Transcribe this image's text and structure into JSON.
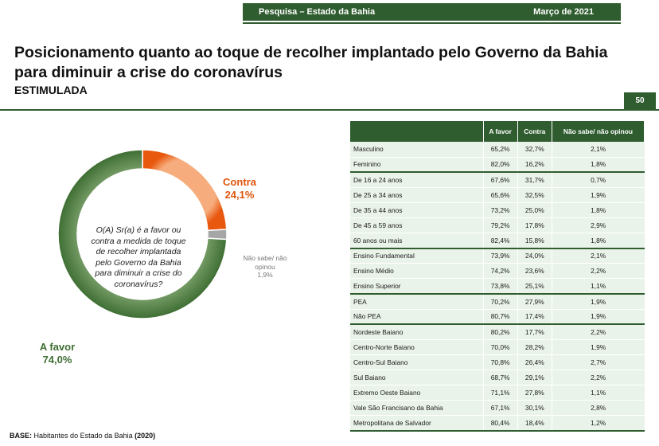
{
  "header": {
    "survey": "Pesquisa – Estado da Bahia",
    "date": "Março de 2021"
  },
  "title": "Posicionamento quanto ao toque de recolher implantado pelo Governo da Bahia para diminuir a crise do coronavírus",
  "subtitle": "ESTIMULADA",
  "page_number": "50",
  "question": "O(A) Sr(a) é a favor ou contra a medida de toque de recolher implantada pelo Governo da Bahia para diminuir a crise do coronavírus?",
  "labels": {
    "contra_name": "Contra",
    "contra_value": "24,1%",
    "ns_name": "Não sabe/ não opinou",
    "ns_value": "1,9%",
    "favor_name": "A favor",
    "favor_value": "74,0%"
  },
  "base": {
    "label": "BASE:",
    "text": "Habitantes do Estado da Bahia",
    "year": "(2020)"
  },
  "colors": {
    "favor": "#3e6e33",
    "contra": "#e8580f",
    "ns": "#a6a6a6",
    "header_green": "#2f5d2f"
  },
  "chart_data": [
    {
      "type": "pie",
      "donut": true,
      "categories": [
        "A favor",
        "Contra",
        "Não sabe/ não opinou"
      ],
      "values": [
        74.0,
        24.1,
        1.9
      ]
    },
    {
      "type": "table",
      "columns": [
        "",
        "A favor",
        "Contra",
        "Não sabe/ não opinou"
      ],
      "rows": [
        {
          "label": "Masculino",
          "values": [
            "65,2%",
            "32,7%",
            "2,1%"
          ],
          "group_start": false
        },
        {
          "label": "Feminino",
          "values": [
            "82,0%",
            "16,2%",
            "1,8%"
          ],
          "group_start": false
        },
        {
          "label": "De 16 a 24 anos",
          "values": [
            "67,6%",
            "31,7%",
            "0,7%"
          ],
          "group_start": true
        },
        {
          "label": "De 25 a 34 anos",
          "values": [
            "65,6%",
            "32,5%",
            "1,9%"
          ],
          "group_start": false
        },
        {
          "label": "De 35 a 44 anos",
          "values": [
            "73,2%",
            "25,0%",
            "1,8%"
          ],
          "group_start": false
        },
        {
          "label": "De 45 a 59 anos",
          "values": [
            "79,2%",
            "17,8%",
            "2,9%"
          ],
          "group_start": false
        },
        {
          "label": "60 anos ou mais",
          "values": [
            "82,4%",
            "15,8%",
            "1,8%"
          ],
          "group_start": false
        },
        {
          "label": "Ensino Fundamental",
          "values": [
            "73,9%",
            "24,0%",
            "2,1%"
          ],
          "group_start": true
        },
        {
          "label": "Ensino Médio",
          "values": [
            "74,2%",
            "23,6%",
            "2,2%"
          ],
          "group_start": false
        },
        {
          "label": "Ensino Superior",
          "values": [
            "73,8%",
            "25,1%",
            "1,1%"
          ],
          "group_start": false
        },
        {
          "label": "PEA",
          "values": [
            "70,2%",
            "27,9%",
            "1,9%"
          ],
          "group_start": true
        },
        {
          "label": "Não PEA",
          "values": [
            "80,7%",
            "17,4%",
            "1,9%"
          ],
          "group_start": false
        },
        {
          "label": "Nordeste Baiano",
          "values": [
            "80,2%",
            "17,7%",
            "2,2%"
          ],
          "group_start": true
        },
        {
          "label": "Centro-Norte Baiano",
          "values": [
            "70,0%",
            "28,2%",
            "1,9%"
          ],
          "group_start": false
        },
        {
          "label": "Centro-Sul Baiano",
          "values": [
            "70,8%",
            "26,4%",
            "2,7%"
          ],
          "group_start": false
        },
        {
          "label": "Sul Baiano",
          "values": [
            "68,7%",
            "29,1%",
            "2,2%"
          ],
          "group_start": false
        },
        {
          "label": "Extremo Oeste Baiano",
          "values": [
            "71,1%",
            "27,8%",
            "1,1%"
          ],
          "group_start": false
        },
        {
          "label": "Vale São Francisano da Bahia",
          "values": [
            "67,1%",
            "30,1%",
            "2,8%"
          ],
          "group_start": false
        },
        {
          "label": "Metropolitana de Salvador",
          "values": [
            "80,4%",
            "18,4%",
            "1,2%"
          ],
          "group_start": false
        }
      ]
    }
  ]
}
